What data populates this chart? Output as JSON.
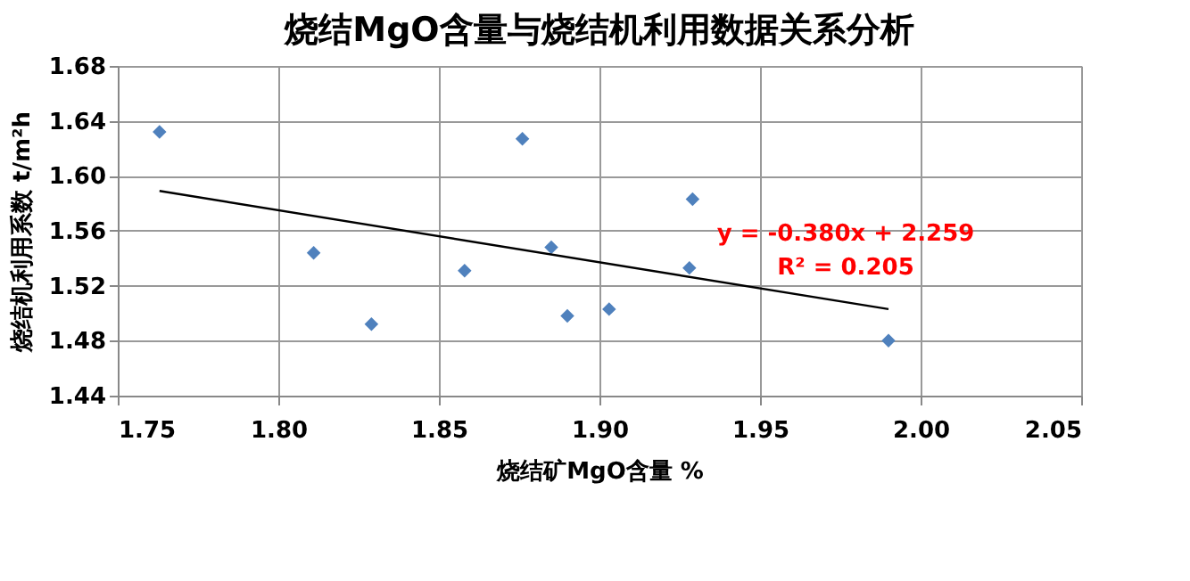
{
  "chart_data": {
    "type": "scatter",
    "title": "烧结MgO含量与烧结机利用数据关系分析",
    "xlabel": "烧结矿MgO含量 %",
    "ylabel": "烧结机利用系数 t/m²h",
    "xlim": [
      1.75,
      2.05
    ],
    "xticks": [
      1.75,
      {
        "value": 1.8,
        "label": "1.80"
      },
      1.85,
      {
        "value": 1.9,
        "label": "1.90"
      },
      1.95,
      {
        "value": 2.0,
        "label": "2.00"
      },
      2.05
    ],
    "ylim": [
      1.44,
      1.68
    ],
    "yticks": [
      1.44,
      1.48,
      1.52,
      1.56,
      {
        "value": 1.6,
        "label": "1.60"
      },
      1.64,
      1.68
    ],
    "grid": true,
    "marker": "diamond",
    "series": [
      {
        "color": "#4f81bd",
        "x": [
          1.763,
          1.811,
          1.829,
          1.858,
          1.876,
          1.885,
          1.89,
          1.903,
          1.929,
          1.928,
          1.99
        ],
        "values": [
          1.632,
          1.544,
          1.492,
          1.531,
          1.627,
          1.548,
          1.498,
          1.503,
          1.583,
          1.533,
          1.48
        ]
      },
      {
        "type": "line",
        "marker": "none",
        "color": "#000000",
        "x": [
          1.763,
          1.99
        ],
        "values": [
          1.589,
          1.503
        ]
      }
    ],
    "annotations": [
      "y = -0.380x + 2.259",
      "R² = 0.205"
    ]
  }
}
